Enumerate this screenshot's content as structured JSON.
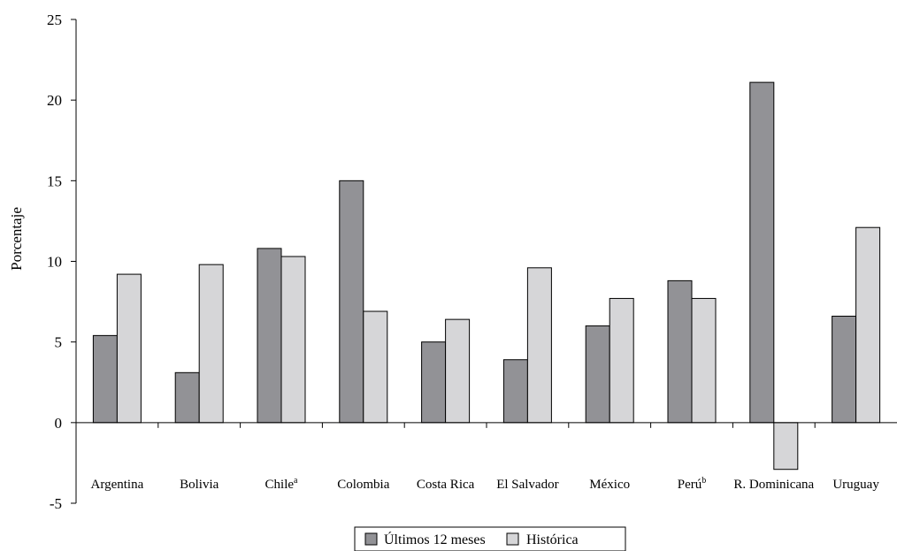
{
  "chart_data": {
    "type": "bar",
    "ylabel": "Porcentaje",
    "ylim": [
      -5,
      25
    ],
    "yticks": [
      -5,
      0,
      5,
      10,
      15,
      20,
      25
    ],
    "categories": [
      {
        "name": "Argentina",
        "sup": ""
      },
      {
        "name": "Bolivia",
        "sup": ""
      },
      {
        "name": "Chile",
        "sup": "a"
      },
      {
        "name": "Colombia",
        "sup": ""
      },
      {
        "name": "Costa Rica",
        "sup": ""
      },
      {
        "name": "El Salvador",
        "sup": ""
      },
      {
        "name": "México",
        "sup": ""
      },
      {
        "name": "Perú",
        "sup": "b"
      },
      {
        "name": "R. Dominicana",
        "sup": ""
      },
      {
        "name": "Uruguay",
        "sup": ""
      }
    ],
    "series": [
      {
        "name": "Últimos 12 meses",
        "color": "#929296",
        "values": [
          5.4,
          3.1,
          10.8,
          15.0,
          5.0,
          3.9,
          6.0,
          8.8,
          21.1,
          6.6
        ]
      },
      {
        "name": "Histórica",
        "color": "#d6d6d8",
        "values": [
          9.2,
          9.8,
          10.3,
          6.9,
          6.4,
          9.6,
          7.7,
          7.7,
          -2.9,
          12.1
        ]
      }
    ],
    "grid": false,
    "legend": "bottom"
  }
}
